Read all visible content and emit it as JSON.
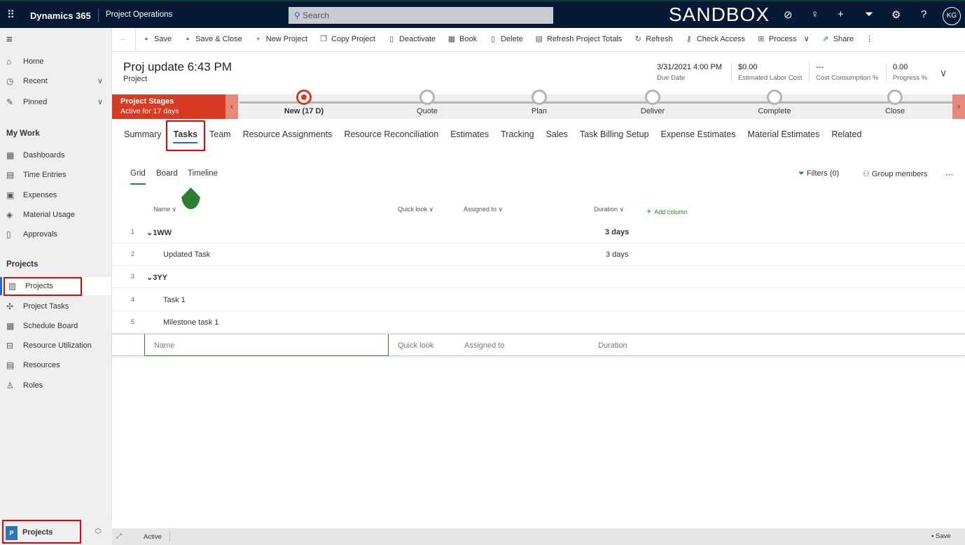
{
  "topbar": {
    "brand": "Dynamics 365",
    "app": "Project Operations",
    "search_placeholder": "Search",
    "environment": "SANDBOX",
    "avatar": "KG",
    "icons": [
      "waffle-icon",
      "search-icon",
      "task-flow-icon",
      "lightbulb-icon",
      "plus-icon",
      "filter-icon",
      "settings-icon",
      "help-icon"
    ]
  },
  "sidebar": {
    "home": "Home",
    "recent": "Recent",
    "pinned": "Pinned",
    "mywork_header": "My Work",
    "mywork": [
      "Dashboards",
      "Time Entries",
      "Expenses",
      "Material Usage",
      "Approvals"
    ],
    "projects_header": "Projects",
    "projects": [
      "Projects",
      "Project Tasks",
      "Schedule Board",
      "Resource Utilization",
      "Resources",
      "Roles"
    ],
    "area_badge": "P",
    "area": "Projects"
  },
  "commands": [
    "Save",
    "Save & Close",
    "New Project",
    "Copy Project",
    "Deactivate",
    "Book",
    "Delete",
    "Refresh Project Totals",
    "Refresh",
    "Check Access",
    "Process",
    "Share"
  ],
  "header": {
    "title": "Proj update 6:43 PM",
    "entity": "Project",
    "fields": [
      {
        "value": "3/31/2021 4:00 PM",
        "label": "Due Date"
      },
      {
        "value": "$0.00",
        "label": "Estimated Labor Cost"
      },
      {
        "value": "---",
        "label": "Cost Consumption %"
      },
      {
        "value": "0.00",
        "label": "Progress %"
      }
    ]
  },
  "stages": {
    "title": "Project Stages",
    "subtitle": "Active for 17 days",
    "items": [
      "New  (17 D)",
      "Quote",
      "Plan",
      "Deliver",
      "Complete",
      "Close"
    ],
    "accent": "#d83b24"
  },
  "tabs": [
    "Summary",
    "Tasks",
    "Team",
    "Resource Assignments",
    "Resource Reconciliation",
    "Estimates",
    "Tracking",
    "Sales",
    "Task Billing Setup",
    "Expense Estimates",
    "Material Estimates",
    "Related"
  ],
  "active_tab": "Tasks",
  "views": [
    "Grid",
    "Board",
    "Timeline"
  ],
  "grid_tools": {
    "filters": "Filters (0)",
    "group": "Group members"
  },
  "grid": {
    "columns": [
      "Name",
      "Quick look",
      "Assigned to",
      "Duration"
    ],
    "add_column": "Add column",
    "rows": [
      {
        "n": "1",
        "name": "1WW",
        "duration": "3 days",
        "group": true
      },
      {
        "n": "2",
        "name": "Updated Task",
        "duration": "3 days",
        "group": false
      },
      {
        "n": "3",
        "name": "3YY",
        "duration": "",
        "group": true
      },
      {
        "n": "4",
        "name": "Task 1",
        "duration": "",
        "group": false
      },
      {
        "n": "5",
        "name": "Milestone task 1",
        "duration": "",
        "group": false
      }
    ],
    "new_row": [
      "Name",
      "Quick look",
      "Assigned to",
      "Duration"
    ]
  },
  "status": {
    "state": "Active",
    "save": "Save"
  }
}
